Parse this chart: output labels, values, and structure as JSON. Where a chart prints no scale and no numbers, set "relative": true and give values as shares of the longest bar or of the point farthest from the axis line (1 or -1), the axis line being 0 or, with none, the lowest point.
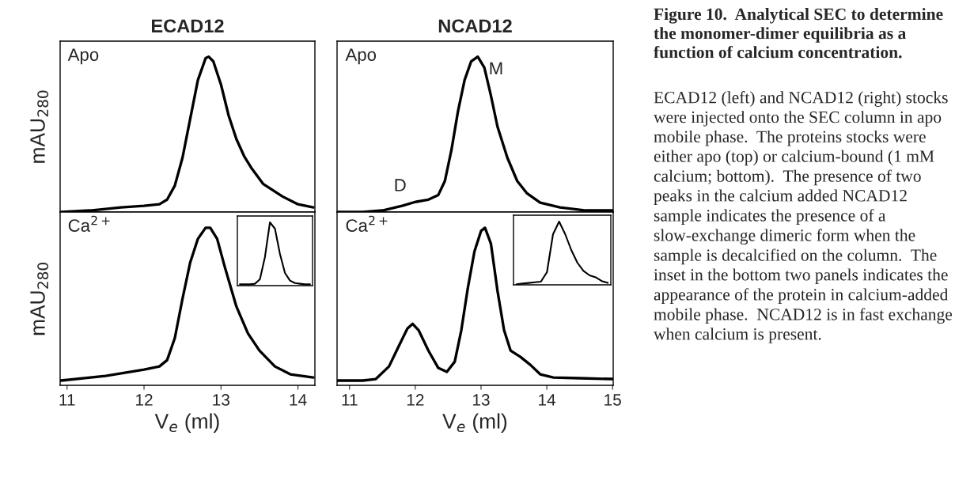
{
  "chart_data": [
    {
      "type": "line",
      "title": "ECAD12",
      "ylabel": "mAU$_{280}$",
      "relative": true,
      "tick_labels": false,
      "xlim": [
        10.91,
        14.22
      ],
      "xticks": [
        11,
        12,
        13,
        14
      ],
      "annotations": [
        "Apo"
      ],
      "x": [
        10.92,
        11.3,
        11.7,
        12.0,
        12.2,
        12.3,
        12.4,
        12.5,
        12.6,
        12.7,
        12.8,
        12.84,
        12.9,
        13.0,
        13.1,
        13.2,
        13.3,
        13.4,
        13.55,
        13.8,
        14.0,
        14.2
      ],
      "series": [
        {
          "color": "#000000",
          "values": [
            0.0,
            0.01,
            0.03,
            0.04,
            0.05,
            0.08,
            0.17,
            0.35,
            0.6,
            0.85,
            0.99,
            1.0,
            0.97,
            0.82,
            0.62,
            0.47,
            0.36,
            0.28,
            0.18,
            0.1,
            0.05,
            0.03
          ]
        }
      ]
    },
    {
      "type": "line",
      "title": "NCAD12",
      "relative": true,
      "tick_labels": false,
      "xlim": [
        10.81,
        15.01
      ],
      "xticks": [
        11,
        12,
        13,
        14,
        15
      ],
      "annotations": [
        "Apo",
        {
          "text": "M",
          "x": 12.95,
          "y": 1.0
        },
        {
          "text": "D",
          "x": 12.0,
          "y": 0.065
        }
      ],
      "x": [
        10.82,
        11.2,
        11.5,
        11.8,
        12.0,
        12.2,
        12.35,
        12.45,
        12.55,
        12.65,
        12.75,
        12.85,
        12.95,
        13.05,
        13.15,
        13.25,
        13.4,
        13.55,
        13.7,
        13.9,
        14.2,
        14.6,
        15.0
      ],
      "series": [
        {
          "color": "#000000",
          "values": [
            0.0,
            0.0,
            0.01,
            0.04,
            0.065,
            0.08,
            0.11,
            0.2,
            0.4,
            0.65,
            0.85,
            0.97,
            1.0,
            0.93,
            0.75,
            0.55,
            0.35,
            0.2,
            0.12,
            0.06,
            0.03,
            0.01,
            0.01
          ]
        }
      ]
    },
    {
      "type": "line",
      "xlabel": "V$_{e}$ (ml)",
      "ylabel": "mAU$_{280}$",
      "relative": true,
      "tick_labels": "x",
      "xlim": [
        10.91,
        14.22
      ],
      "xticks": [
        11,
        12,
        13,
        14
      ],
      "annotations": [
        "Ca$^{2+}$"
      ],
      "x": [
        10.92,
        11.5,
        12.0,
        12.2,
        12.3,
        12.4,
        12.5,
        12.6,
        12.7,
        12.8,
        12.86,
        12.95,
        13.05,
        13.2,
        13.35,
        13.5,
        13.7,
        13.9,
        14.2
      ],
      "series": [
        {
          "color": "#000000",
          "values": [
            0.03,
            0.06,
            0.1,
            0.12,
            0.16,
            0.3,
            0.55,
            0.78,
            0.93,
            1.0,
            1.0,
            0.93,
            0.75,
            0.5,
            0.33,
            0.22,
            0.12,
            0.07,
            0.05
          ]
        }
      ]
    },
    {
      "type": "line",
      "xlabel": "V$_{e}$ (ml)",
      "relative": true,
      "tick_labels": "x",
      "xlim": [
        10.81,
        15.01
      ],
      "xticks": [
        11,
        12,
        13,
        14,
        15
      ],
      "annotations": [
        "Ca$^{2+}$"
      ],
      "x": [
        10.82,
        11.2,
        11.4,
        11.6,
        11.75,
        11.88,
        11.96,
        12.05,
        12.2,
        12.35,
        12.48,
        12.6,
        12.7,
        12.8,
        12.9,
        13.0,
        13.06,
        13.15,
        13.25,
        13.35,
        13.45,
        13.6,
        13.75,
        13.9,
        14.1,
        14.5,
        15.0
      ],
      "series": [
        {
          "color": "#000000",
          "values": [
            0.03,
            0.03,
            0.04,
            0.12,
            0.25,
            0.36,
            0.39,
            0.35,
            0.22,
            0.11,
            0.085,
            0.15,
            0.35,
            0.62,
            0.85,
            0.98,
            1.0,
            0.9,
            0.6,
            0.35,
            0.22,
            0.18,
            0.13,
            0.07,
            0.05,
            0.045,
            0.04
          ]
        }
      ]
    },
    {
      "type": "line",
      "relative": true,
      "tick_labels": false,
      "categories": [
        null,
        null,
        null,
        null,
        null,
        null,
        null,
        null,
        null,
        null,
        null,
        null,
        null,
        null,
        null
      ],
      "series": [
        {
          "color": "#000000",
          "values": [
            0.02,
            0.02,
            0.02,
            0.03,
            0.1,
            0.45,
            1.0,
            0.9,
            0.5,
            0.2,
            0.08,
            0.04,
            0.03,
            0.02,
            0.02
          ]
        }
      ]
    },
    {
      "type": "line",
      "relative": true,
      "tick_labels": false,
      "categories": [
        null,
        null,
        null,
        null,
        null,
        null,
        null,
        null,
        null,
        null,
        null,
        null,
        null,
        null,
        null,
        null
      ],
      "series": [
        {
          "color": "#000000",
          "values": [
            0.01,
            0.02,
            0.03,
            0.04,
            0.05,
            0.2,
            0.8,
            1.0,
            0.8,
            0.55,
            0.35,
            0.22,
            0.15,
            0.12,
            0.06,
            0.03
          ]
        }
      ]
    },
    {
      "type": "other",
      "title": "Figure 10.  Analytical SEC to determine the monomer-dimer equilibria as a function of calcium concentration.",
      "annotations": [
        "ECAD12 (left) and NCAD12 (right) stocks were injected onto the SEC column in apo mobile phase.  The proteins stocks were either apo (top) or calcium-bound (1 mM calcium; bottom).  The presence of two peaks in the calcium added NCAD12 sample indicates the presence of a slow-exchange dimeric form when the sample is decalcified on the column.  The inset in the bottom two panels indicates the appearance of the protein in calcium-added mobile phase.  NCAD12 is in fast exchange when calcium is present."
      ]
    }
  ]
}
